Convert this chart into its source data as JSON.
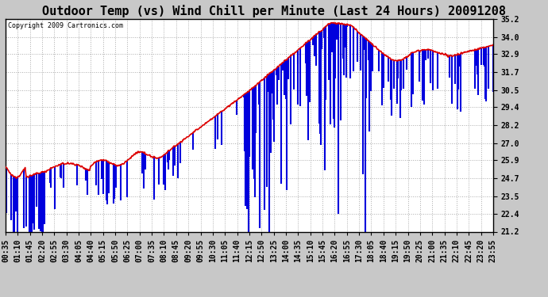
{
  "title": "Outdoor Temp (vs) Wind Chill per Minute (Last 24 Hours) 20091208",
  "copyright": "Copyright 2009 Cartronics.com",
  "ylim": [
    21.2,
    35.2
  ],
  "yticks": [
    21.2,
    22.4,
    23.5,
    24.7,
    25.9,
    27.0,
    28.2,
    29.4,
    30.5,
    31.7,
    32.9,
    34.0,
    35.2
  ],
  "figure_bg_color": "#c8c8c8",
  "plot_bg_color": "#ffffff",
  "bar_color": "#0000dd",
  "line_color": "#dd0000",
  "title_fontsize": 11,
  "copyright_fontsize": 6,
  "tick_fontsize": 7,
  "xtick_labels": [
    "00:35",
    "01:10",
    "01:45",
    "02:20",
    "02:55",
    "03:30",
    "04:05",
    "04:40",
    "05:15",
    "05:50",
    "06:25",
    "07:00",
    "07:35",
    "08:10",
    "08:45",
    "09:20",
    "09:55",
    "10:30",
    "11:05",
    "11:40",
    "12:15",
    "12:50",
    "13:25",
    "14:00",
    "14:35",
    "15:10",
    "15:45",
    "16:20",
    "16:55",
    "17:30",
    "18:05",
    "18:40",
    "19:15",
    "19:50",
    "20:25",
    "21:00",
    "21:35",
    "22:10",
    "22:45",
    "23:20",
    "23:55"
  ]
}
